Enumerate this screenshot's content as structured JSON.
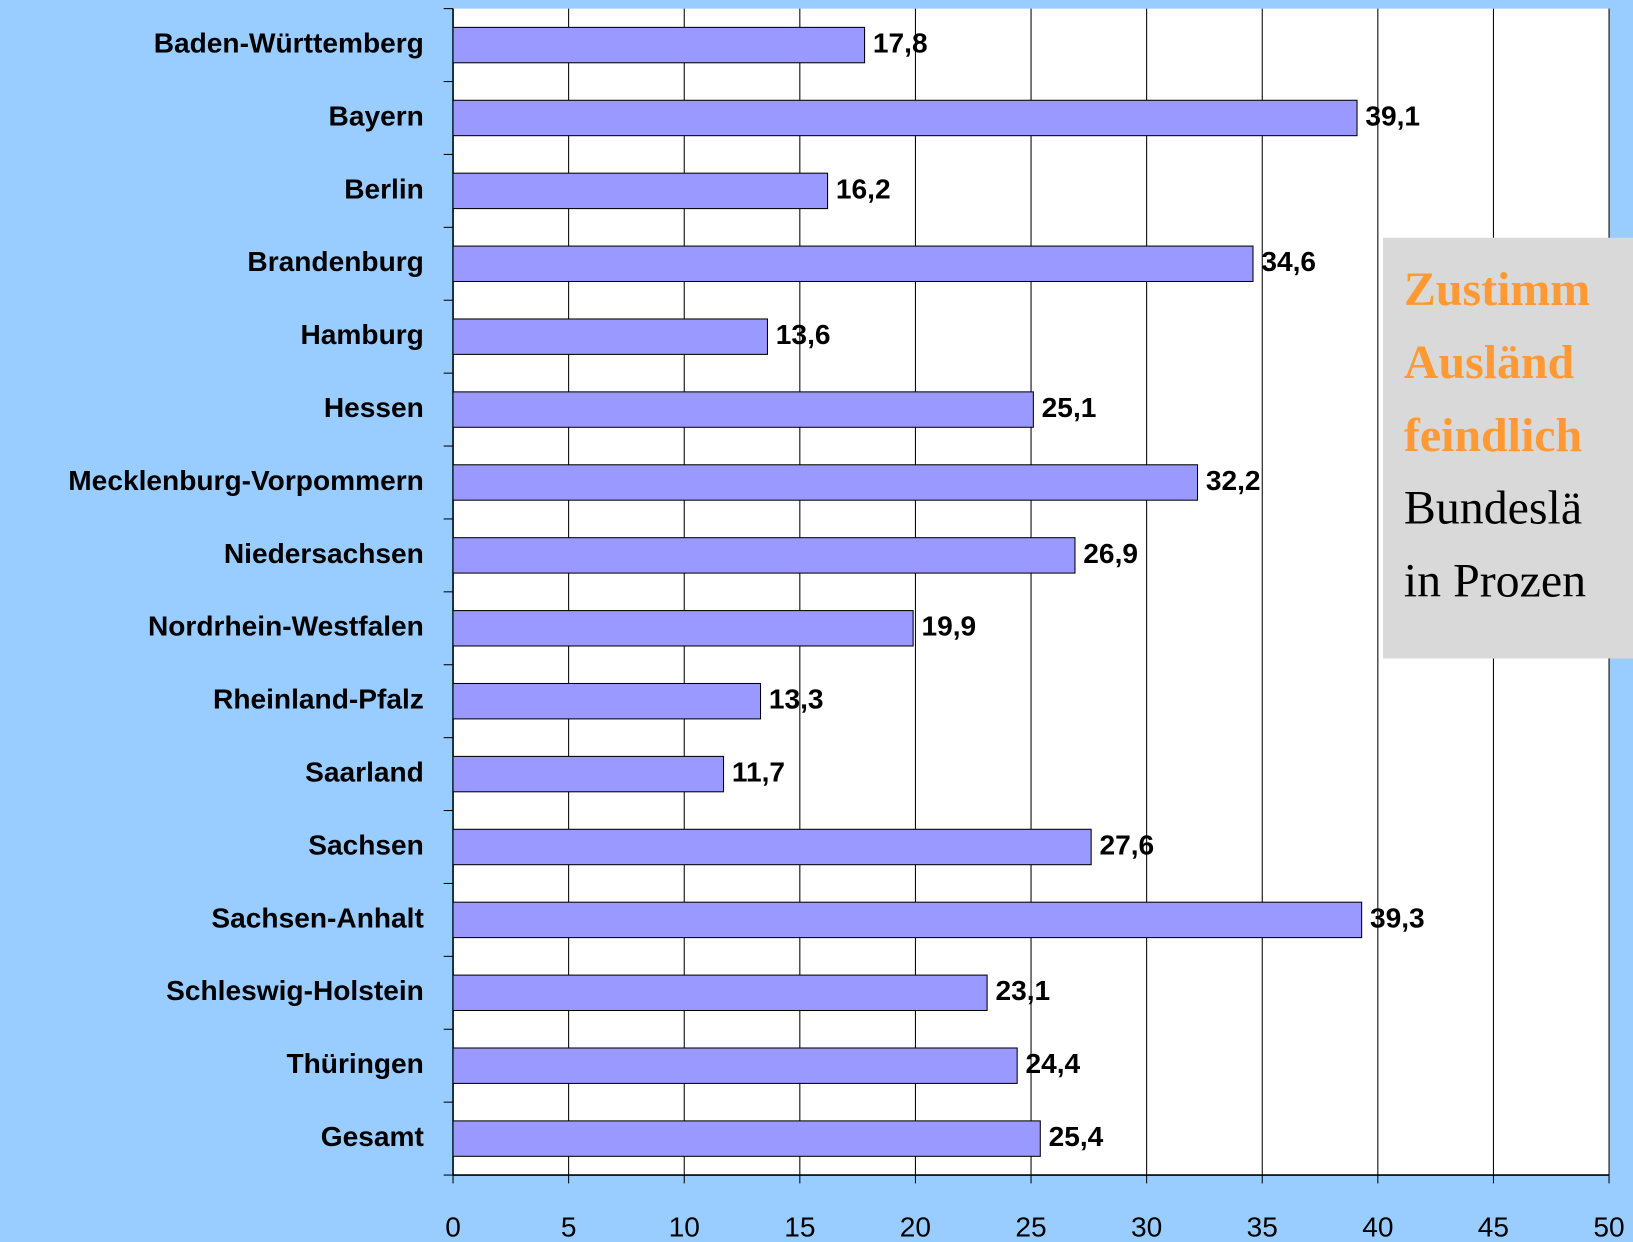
{
  "chart_data": {
    "type": "bar",
    "orientation": "horizontal",
    "categories": [
      "Baden-Württemberg",
      "Bayern",
      "Berlin",
      "Brandenburg",
      "Hamburg",
      "Hessen",
      "Mecklenburg-Vorpommern",
      "Niedersachsen",
      "Nordrhein-Westfalen",
      "Rheinland-Pfalz",
      "Saarland",
      "Sachsen",
      "Sachsen-Anhalt",
      "Schleswig-Holstein",
      "Thüringen",
      "Gesamt"
    ],
    "values": [
      17.8,
      39.1,
      16.2,
      34.6,
      13.6,
      25.1,
      32.2,
      26.9,
      19.9,
      13.3,
      11.7,
      27.6,
      39.3,
      23.1,
      24.4,
      25.4
    ],
    "value_labels": [
      "17,8",
      "39,1",
      "16,2",
      "34,6",
      "13,6",
      "25,1",
      "32,2",
      "26,9",
      "19,9",
      "13,3",
      "11,7",
      "27,6",
      "39,3",
      "23,1",
      "24,4",
      "25,4"
    ],
    "color": "#9999ff",
    "xlim": [
      0,
      50
    ],
    "xticks": [
      0,
      5,
      10,
      15,
      20,
      25,
      30,
      35,
      40,
      45,
      50
    ],
    "grid": true,
    "annotation": {
      "highlight": [
        "Zustimm",
        "Ausländ",
        "feindlich"
      ],
      "text": [
        "Bundeslä",
        "in Prozen"
      ]
    }
  }
}
